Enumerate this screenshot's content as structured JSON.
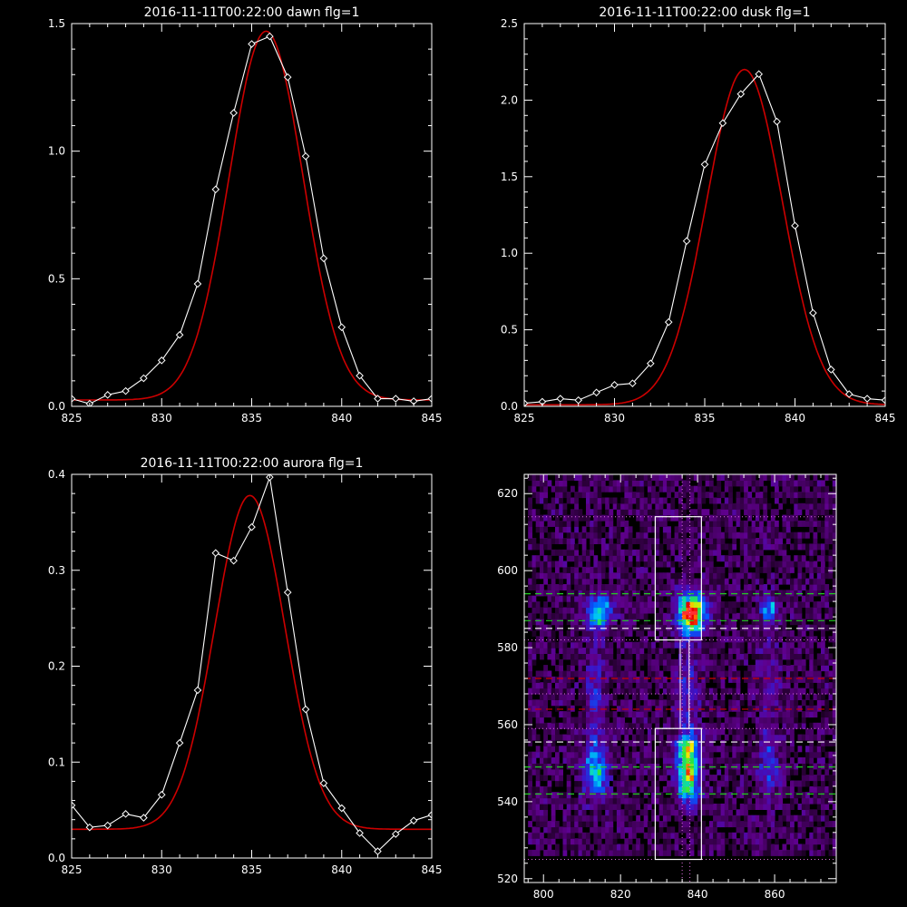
{
  "colors": {
    "background": "#000000",
    "axes": "#ffffff",
    "data": "#ffffff",
    "fit": "#cc0000"
  },
  "chart_data": [
    {
      "type": "line",
      "title": "2016-11-11T00:22:00 dawn flg=1",
      "xlim": [
        825,
        845
      ],
      "ylim": [
        0,
        1.5
      ],
      "xticks": [
        825,
        830,
        835,
        840,
        845
      ],
      "yticks": [
        0.0,
        0.5,
        1.0,
        1.5
      ],
      "ytick_labels": [
        "0.0",
        "0.5",
        "1.0",
        "1.5"
      ],
      "series": [
        {
          "marker": "diamond",
          "color": "#ffffff",
          "x": [
            825,
            826,
            827,
            828,
            829,
            830,
            831,
            832,
            833,
            834,
            835,
            836,
            837,
            838,
            839,
            840,
            841,
            842,
            843,
            844,
            845
          ],
          "y": [
            0.03,
            0.01,
            0.045,
            0.06,
            0.11,
            0.18,
            0.28,
            0.48,
            0.85,
            1.15,
            1.42,
            1.45,
            1.29,
            0.98,
            0.58,
            0.31,
            0.12,
            0.03,
            0.03,
            0.02,
            0.03
          ]
        },
        {
          "gaussian": {
            "amp": 1.445,
            "mu": 835.8,
            "sigma": 2.05,
            "base": 0.025
          },
          "color": "#cc0000"
        }
      ]
    },
    {
      "type": "line",
      "title": "2016-11-11T00:22:00 dusk flg=1",
      "xlim": [
        825,
        845
      ],
      "ylim": [
        0,
        2.5
      ],
      "xticks": [
        825,
        830,
        835,
        840,
        845
      ],
      "yticks": [
        0.0,
        0.5,
        1.0,
        1.5,
        2.0,
        2.5
      ],
      "ytick_labels": [
        "0.0",
        "0.5",
        "1.0",
        "1.5",
        "2.0",
        "2.5"
      ],
      "series": [
        {
          "marker": "diamond",
          "color": "#ffffff",
          "x": [
            825,
            826,
            827,
            828,
            829,
            830,
            831,
            832,
            833,
            834,
            835,
            836,
            837,
            838,
            839,
            840,
            841,
            842,
            843,
            844,
            845
          ],
          "y": [
            0.02,
            0.03,
            0.05,
            0.04,
            0.09,
            0.14,
            0.15,
            0.28,
            0.55,
            1.08,
            1.58,
            1.85,
            2.04,
            2.17,
            1.86,
            1.18,
            0.61,
            0.24,
            0.08,
            0.05,
            0.04
          ]
        },
        {
          "gaussian": {
            "amp": 2.19,
            "mu": 837.2,
            "sigma": 2.1,
            "base": 0.01
          },
          "color": "#cc0000"
        }
      ]
    },
    {
      "type": "line",
      "title": "2016-11-11T00:22:00 aurora flg=1",
      "xlim": [
        825,
        845
      ],
      "ylim": [
        0,
        0.4
      ],
      "xticks": [
        825,
        830,
        835,
        840,
        845
      ],
      "yticks": [
        0.0,
        0.1,
        0.2,
        0.3,
        0.4
      ],
      "ytick_labels": [
        "0.0",
        "0.1",
        "0.2",
        "0.3",
        "0.4"
      ],
      "series": [
        {
          "marker": "diamond",
          "color": "#ffffff",
          "x": [
            825,
            826,
            827,
            828,
            829,
            830,
            831,
            832,
            833,
            834,
            835,
            836,
            837,
            838,
            839,
            840,
            841,
            842,
            843,
            844,
            845
          ],
          "y": [
            0.055,
            0.032,
            0.034,
            0.046,
            0.042,
            0.066,
            0.12,
            0.175,
            0.318,
            0.31,
            0.345,
            0.397,
            0.277,
            0.155,
            0.078,
            0.052,
            0.026,
            0.007,
            0.025,
            0.039,
            0.045
          ]
        },
        {
          "gaussian": {
            "amp": 0.348,
            "mu": 834.9,
            "sigma": 1.95,
            "base": 0.03
          },
          "color": "#cc0000"
        }
      ]
    },
    {
      "type": "heatmap",
      "title": "",
      "xlim": [
        795,
        876
      ],
      "ylim": [
        519,
        625
      ],
      "xticks": [
        800,
        820,
        840,
        860
      ],
      "yticks": [
        520,
        540,
        560,
        580,
        600,
        620
      ],
      "blobs": [
        {
          "x": 838,
          "y": 588.5,
          "sx": 2.4,
          "sy": 3.4,
          "amp": 1.0
        },
        {
          "x": 837,
          "y": 546,
          "sx": 2.0,
          "sy": 4.5,
          "amp": 0.72
        },
        {
          "x": 837,
          "y": 554,
          "sx": 2.0,
          "sy": 2.5,
          "amp": 0.45
        },
        {
          "x": 814,
          "y": 588.5,
          "sx": 2.3,
          "sy": 2.8,
          "amp": 0.55
        },
        {
          "x": 813,
          "y": 547,
          "sx": 2.0,
          "sy": 5.0,
          "amp": 0.42
        },
        {
          "x": 858,
          "y": 589.5,
          "sx": 1.7,
          "sy": 2.0,
          "amp": 0.38
        },
        {
          "x": 858,
          "y": 548,
          "sx": 1.8,
          "sy": 5.0,
          "amp": 0.22
        },
        {
          "x": 837,
          "y": 568,
          "sx": 2.0,
          "sy": 9.0,
          "amp": 0.2
        },
        {
          "x": 813,
          "y": 567,
          "sx": 2.0,
          "sy": 12.0,
          "amp": 0.18
        },
        {
          "x": 858,
          "y": 568,
          "sx": 2.0,
          "sy": 14.0,
          "amp": 0.12
        }
      ],
      "boxes": [
        {
          "x": [
            829,
            841
          ],
          "y": [
            582,
            614
          ]
        },
        {
          "x": [
            829,
            841
          ],
          "y": [
            525,
            559
          ]
        }
      ],
      "vlines_dotted": [
        836,
        838
      ],
      "hlines_dotted": [
        614,
        582,
        568,
        559,
        525
      ],
      "hlines_dashed": [
        {
          "y": 594,
          "color": "#22cc22"
        },
        {
          "y": 587,
          "color": "#22cc22"
        },
        {
          "y": 585,
          "color": "#ffffff"
        },
        {
          "y": 572,
          "color": "#cc0000"
        },
        {
          "y": 564,
          "color": "#cc0000"
        },
        {
          "y": 555.5,
          "color": "#ffffff"
        },
        {
          "y": 549,
          "color": "#22cc22"
        },
        {
          "y": 542,
          "color": "#22cc22"
        }
      ]
    }
  ]
}
